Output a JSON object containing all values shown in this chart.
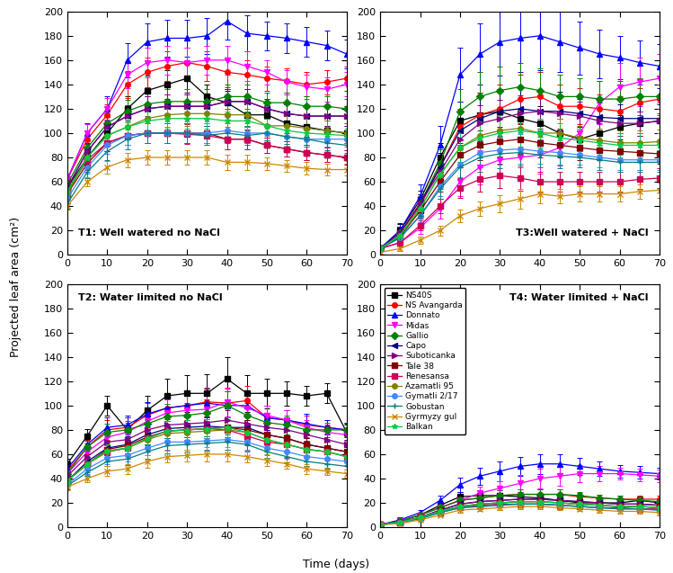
{
  "cultivars": [
    "NS40S",
    "NS Avangarda",
    "Donnato",
    "Midas",
    "Gallio",
    "Capo",
    "Suboticanka",
    "Tale 38",
    "Renesansa",
    "Azamatli 95",
    "Gymatli 2/17",
    "Gobustan",
    "Gyrmyzy gul",
    "Balkan"
  ],
  "colors": [
    "#000000",
    "#ff0000",
    "#0000ff",
    "#ff00ff",
    "#008000",
    "#000080",
    "#800080",
    "#800000",
    "#cc0055",
    "#808000",
    "#4488ff",
    "#008080",
    "#cc8800",
    "#00cc44"
  ],
  "markers": [
    "s",
    "o",
    "^",
    "v",
    "D",
    "<",
    ">",
    "s",
    "s",
    "o",
    "o",
    "+",
    "x",
    "*"
  ],
  "time": [
    0,
    5,
    10,
    15,
    20,
    25,
    30,
    35,
    40,
    45,
    50,
    55,
    60,
    65,
    70
  ],
  "T1": [
    [
      55,
      80,
      100,
      120,
      135,
      140,
      145,
      130,
      125,
      115,
      115,
      108,
      105,
      102,
      100
    ],
    [
      62,
      95,
      115,
      140,
      150,
      155,
      158,
      155,
      150,
      148,
      145,
      143,
      140,
      142,
      145
    ],
    [
      62,
      100,
      120,
      160,
      175,
      178,
      178,
      180,
      192,
      182,
      180,
      178,
      175,
      172,
      165
    ],
    [
      62,
      100,
      120,
      148,
      158,
      160,
      158,
      160,
      160,
      155,
      150,
      142,
      138,
      136,
      140
    ],
    [
      58,
      88,
      108,
      118,
      124,
      126,
      126,
      126,
      130,
      130,
      125,
      125,
      122,
      122,
      120
    ],
    [
      55,
      85,
      105,
      114,
      120,
      122,
      122,
      122,
      126,
      126,
      120,
      116,
      114,
      114,
      114
    ],
    [
      55,
      85,
      105,
      114,
      120,
      122,
      122,
      122,
      126,
      126,
      120,
      116,
      114,
      114,
      114
    ],
    [
      50,
      75,
      92,
      98,
      100,
      100,
      100,
      100,
      95,
      95,
      90,
      87,
      84,
      82,
      80
    ],
    [
      52,
      78,
      92,
      98,
      100,
      100,
      99,
      98,
      95,
      95,
      90,
      87,
      84,
      82,
      80
    ],
    [
      50,
      80,
      98,
      105,
      112,
      115,
      116,
      116,
      115,
      115,
      106,
      106,
      104,
      102,
      100
    ],
    [
      46,
      72,
      90,
      98,
      100,
      100,
      100,
      100,
      102,
      100,
      100,
      97,
      95,
      95,
      95
    ],
    [
      42,
      68,
      85,
      95,
      100,
      100,
      100,
      98,
      100,
      98,
      100,
      97,
      95,
      92,
      90
    ],
    [
      40,
      60,
      72,
      78,
      80,
      80,
      80,
      80,
      76,
      76,
      75,
      73,
      71,
      70,
      70
    ],
    [
      52,
      80,
      98,
      105,
      110,
      112,
      112,
      112,
      110,
      110,
      106,
      102,
      100,
      99,
      98
    ]
  ],
  "T1_err": [
    [
      4,
      6,
      8,
      10,
      12,
      12,
      12,
      10,
      10,
      10,
      8,
      8,
      8,
      8,
      8
    ],
    [
      5,
      7,
      9,
      11,
      12,
      12,
      12,
      12,
      12,
      12,
      10,
      10,
      10,
      10,
      10
    ],
    [
      5,
      8,
      10,
      14,
      15,
      15,
      15,
      15,
      15,
      15,
      12,
      12,
      12,
      12,
      12
    ],
    [
      5,
      7,
      9,
      11,
      12,
      12,
      12,
      12,
      12,
      12,
      10,
      10,
      10,
      10,
      10
    ],
    [
      4,
      6,
      8,
      9,
      10,
      10,
      10,
      10,
      10,
      10,
      8,
      8,
      8,
      8,
      8
    ],
    [
      4,
      6,
      8,
      9,
      10,
      10,
      10,
      10,
      10,
      10,
      8,
      8,
      8,
      8,
      8
    ],
    [
      4,
      6,
      8,
      9,
      10,
      10,
      10,
      10,
      10,
      10,
      8,
      8,
      8,
      8,
      8
    ],
    [
      4,
      5,
      7,
      8,
      8,
      8,
      8,
      8,
      8,
      8,
      6,
      6,
      6,
      6,
      6
    ],
    [
      4,
      5,
      7,
      8,
      8,
      8,
      8,
      8,
      8,
      8,
      6,
      6,
      6,
      6,
      6
    ],
    [
      4,
      6,
      8,
      9,
      10,
      10,
      10,
      10,
      10,
      10,
      8,
      8,
      8,
      8,
      8
    ],
    [
      4,
      5,
      7,
      8,
      8,
      8,
      8,
      8,
      8,
      8,
      6,
      6,
      6,
      6,
      6
    ],
    [
      4,
      5,
      7,
      8,
      8,
      8,
      8,
      8,
      8,
      8,
      6,
      6,
      6,
      6,
      6
    ],
    [
      3,
      4,
      5,
      6,
      6,
      6,
      6,
      6,
      6,
      6,
      5,
      5,
      5,
      5,
      5
    ],
    [
      4,
      5,
      7,
      8,
      8,
      8,
      8,
      8,
      8,
      8,
      6,
      6,
      6,
      6,
      6
    ]
  ],
  "T2": [
    [
      52,
      75,
      100,
      80,
      96,
      108,
      110,
      110,
      122,
      110,
      110,
      110,
      108,
      110,
      78
    ],
    [
      46,
      66,
      80,
      82,
      92,
      98,
      100,
      103,
      102,
      104,
      90,
      88,
      84,
      82,
      80
    ],
    [
      48,
      68,
      82,
      84,
      93,
      98,
      100,
      102,
      100,
      100,
      90,
      88,
      85,
      82,
      80
    ],
    [
      44,
      62,
      74,
      78,
      87,
      94,
      96,
      97,
      103,
      98,
      92,
      88,
      82,
      78,
      76
    ],
    [
      44,
      66,
      78,
      80,
      85,
      91,
      92,
      94,
      100,
      92,
      86,
      84,
      80,
      80,
      80
    ],
    [
      38,
      54,
      65,
      68,
      76,
      81,
      82,
      83,
      82,
      82,
      76,
      73,
      68,
      65,
      62
    ],
    [
      42,
      58,
      70,
      72,
      80,
      84,
      85,
      86,
      88,
      85,
      82,
      80,
      76,
      72,
      68
    ],
    [
      38,
      52,
      64,
      67,
      74,
      79,
      80,
      81,
      82,
      80,
      76,
      73,
      68,
      65,
      62
    ],
    [
      38,
      52,
      62,
      65,
      73,
      79,
      80,
      81,
      80,
      75,
      70,
      68,
      64,
      62,
      58
    ],
    [
      38,
      52,
      62,
      65,
      72,
      77,
      78,
      79,
      80,
      78,
      72,
      68,
      64,
      62,
      58
    ],
    [
      35,
      48,
      57,
      59,
      65,
      70,
      70,
      71,
      72,
      70,
      65,
      62,
      58,
      56,
      54
    ],
    [
      34,
      45,
      54,
      56,
      62,
      67,
      68,
      69,
      70,
      68,
      62,
      58,
      54,
      52,
      50
    ],
    [
      33,
      40,
      46,
      48,
      54,
      58,
      59,
      60,
      60,
      58,
      55,
      52,
      48,
      46,
      44
    ],
    [
      38,
      52,
      63,
      65,
      73,
      79,
      80,
      81,
      82,
      78,
      72,
      68,
      64,
      62,
      58
    ]
  ],
  "T2_err": [
    [
      4,
      6,
      8,
      10,
      12,
      14,
      15,
      16,
      18,
      15,
      12,
      10,
      8,
      8,
      6
    ],
    [
      4,
      6,
      8,
      8,
      10,
      11,
      12,
      12,
      12,
      12,
      10,
      8,
      8,
      6,
      6
    ],
    [
      4,
      6,
      8,
      8,
      10,
      11,
      12,
      12,
      12,
      12,
      10,
      8,
      8,
      6,
      6
    ],
    [
      3,
      5,
      7,
      8,
      10,
      11,
      12,
      12,
      12,
      10,
      8,
      8,
      6,
      6,
      5
    ],
    [
      3,
      5,
      7,
      7,
      8,
      10,
      10,
      11,
      12,
      10,
      8,
      8,
      6,
      6,
      5
    ],
    [
      3,
      4,
      6,
      7,
      8,
      8,
      8,
      8,
      8,
      8,
      6,
      6,
      5,
      5,
      4
    ],
    [
      3,
      4,
      6,
      7,
      8,
      8,
      8,
      8,
      8,
      8,
      6,
      6,
      5,
      5,
      4
    ],
    [
      3,
      4,
      5,
      6,
      7,
      8,
      8,
      8,
      8,
      8,
      6,
      6,
      5,
      5,
      4
    ],
    [
      3,
      4,
      5,
      6,
      7,
      8,
      8,
      8,
      8,
      8,
      6,
      6,
      5,
      5,
      4
    ],
    [
      3,
      4,
      5,
      6,
      6,
      7,
      8,
      8,
      8,
      8,
      6,
      6,
      5,
      5,
      4
    ],
    [
      3,
      4,
      5,
      5,
      6,
      6,
      6,
      7,
      8,
      6,
      6,
      5,
      4,
      4,
      3
    ],
    [
      3,
      3,
      4,
      5,
      6,
      6,
      6,
      6,
      6,
      6,
      5,
      5,
      4,
      4,
      3
    ],
    [
      3,
      3,
      4,
      4,
      5,
      5,
      5,
      6,
      6,
      5,
      5,
      4,
      4,
      3,
      3
    ],
    [
      3,
      4,
      5,
      6,
      7,
      8,
      8,
      8,
      8,
      8,
      6,
      6,
      5,
      5,
      4
    ]
  ],
  "T3": [
    [
      5,
      20,
      45,
      80,
      110,
      115,
      118,
      112,
      108,
      100,
      95,
      100,
      105,
      108,
      110
    ],
    [
      5,
      18,
      40,
      72,
      105,
      115,
      120,
      128,
      130,
      122,
      122,
      120,
      118,
      125,
      128
    ],
    [
      5,
      20,
      48,
      90,
      148,
      165,
      175,
      178,
      180,
      175,
      170,
      165,
      162,
      158,
      155
    ],
    [
      5,
      10,
      22,
      38,
      60,
      72,
      78,
      80,
      82,
      88,
      100,
      125,
      138,
      142,
      145
    ],
    [
      5,
      18,
      42,
      75,
      118,
      130,
      135,
      138,
      135,
      130,
      130,
      128,
      128,
      130,
      130
    ],
    [
      5,
      18,
      42,
      72,
      102,
      112,
      118,
      120,
      118,
      118,
      116,
      113,
      112,
      112,
      112
    ],
    [
      5,
      18,
      42,
      68,
      95,
      108,
      112,
      116,
      118,
      116,
      114,
      110,
      108,
      108,
      110
    ],
    [
      5,
      15,
      36,
      60,
      82,
      90,
      93,
      95,
      92,
      90,
      88,
      86,
      85,
      84,
      83
    ],
    [
      5,
      10,
      24,
      40,
      55,
      62,
      65,
      63,
      60,
      60,
      60,
      60,
      60,
      62,
      63
    ],
    [
      5,
      16,
      38,
      66,
      88,
      98,
      102,
      104,
      100,
      100,
      96,
      94,
      92,
      92,
      93
    ],
    [
      5,
      14,
      32,
      56,
      74,
      84,
      86,
      87,
      85,
      84,
      82,
      80,
      78,
      78,
      78
    ],
    [
      5,
      14,
      32,
      54,
      72,
      80,
      83,
      84,
      82,
      81,
      80,
      78,
      76,
      76,
      76
    ],
    [
      2,
      5,
      12,
      20,
      32,
      38,
      42,
      46,
      50,
      48,
      50,
      50,
      50,
      52,
      53
    ],
    [
      5,
      16,
      38,
      66,
      88,
      96,
      100,
      102,
      100,
      96,
      94,
      92,
      90,
      90,
      90
    ]
  ],
  "T3_err": [
    [
      2,
      5,
      8,
      12,
      16,
      18,
      18,
      16,
      14,
      12,
      10,
      10,
      10,
      10,
      10
    ],
    [
      2,
      5,
      8,
      12,
      15,
      18,
      20,
      20,
      20,
      18,
      15,
      12,
      12,
      12,
      12
    ],
    [
      2,
      6,
      10,
      16,
      22,
      25,
      28,
      28,
      28,
      25,
      22,
      20,
      18,
      18,
      18
    ],
    [
      1,
      3,
      5,
      8,
      12,
      14,
      15,
      15,
      15,
      15,
      15,
      18,
      20,
      20,
      20
    ],
    [
      2,
      5,
      8,
      12,
      18,
      20,
      20,
      20,
      18,
      18,
      15,
      15,
      15,
      15,
      15
    ],
    [
      2,
      5,
      8,
      12,
      15,
      18,
      18,
      18,
      16,
      16,
      12,
      12,
      12,
      12,
      12
    ],
    [
      2,
      5,
      8,
      10,
      12,
      15,
      15,
      15,
      14,
      14,
      12,
      10,
      10,
      10,
      10
    ],
    [
      2,
      4,
      6,
      8,
      10,
      12,
      12,
      12,
      12,
      10,
      10,
      8,
      8,
      8,
      8
    ],
    [
      1,
      3,
      4,
      6,
      8,
      10,
      10,
      10,
      8,
      8,
      8,
      8,
      8,
      8,
      8
    ],
    [
      2,
      4,
      6,
      10,
      12,
      14,
      15,
      15,
      12,
      12,
      10,
      10,
      10,
      10,
      10
    ],
    [
      2,
      4,
      6,
      8,
      10,
      12,
      12,
      12,
      10,
      10,
      8,
      8,
      8,
      8,
      8
    ],
    [
      2,
      4,
      6,
      8,
      10,
      12,
      12,
      12,
      10,
      10,
      8,
      8,
      8,
      8,
      8
    ],
    [
      1,
      2,
      3,
      4,
      5,
      6,
      7,
      8,
      8,
      6,
      6,
      6,
      6,
      6,
      6
    ],
    [
      2,
      4,
      6,
      10,
      12,
      14,
      15,
      15,
      12,
      12,
      10,
      10,
      10,
      10,
      10
    ]
  ],
  "T4": [
    [
      2,
      5,
      10,
      18,
      25,
      26,
      26,
      25,
      24,
      22,
      20,
      20,
      20,
      22,
      20
    ],
    [
      2,
      5,
      10,
      16,
      22,
      24,
      26,
      27,
      27,
      27,
      25,
      24,
      23,
      23,
      23
    ],
    [
      2,
      6,
      12,
      22,
      35,
      42,
      46,
      50,
      52,
      52,
      50,
      48,
      46,
      45,
      44
    ],
    [
      2,
      5,
      10,
      16,
      22,
      28,
      32,
      36,
      40,
      42,
      44,
      44,
      44,
      43,
      42
    ],
    [
      2,
      5,
      10,
      16,
      22,
      24,
      26,
      27,
      27,
      27,
      26,
      24,
      23,
      22,
      21
    ],
    [
      2,
      4,
      8,
      14,
      19,
      21,
      22,
      23,
      23,
      22,
      21,
      20,
      19,
      19,
      18
    ],
    [
      2,
      4,
      8,
      14,
      19,
      21,
      22,
      23,
      23,
      22,
      21,
      20,
      19,
      19,
      18
    ],
    [
      2,
      4,
      8,
      13,
      17,
      19,
      20,
      21,
      21,
      20,
      19,
      18,
      17,
      17,
      16
    ],
    [
      2,
      4,
      8,
      12,
      16,
      18,
      19,
      19,
      19,
      18,
      17,
      16,
      16,
      15,
      15
    ],
    [
      2,
      4,
      8,
      13,
      17,
      19,
      20,
      21,
      21,
      20,
      19,
      18,
      17,
      17,
      16
    ],
    [
      2,
      4,
      7,
      12,
      16,
      17,
      18,
      19,
      19,
      18,
      17,
      16,
      15,
      15,
      14
    ],
    [
      2,
      4,
      7,
      12,
      16,
      17,
      18,
      19,
      19,
      18,
      17,
      16,
      15,
      15,
      14
    ],
    [
      2,
      3,
      6,
      10,
      14,
      15,
      16,
      17,
      17,
      16,
      15,
      14,
      13,
      13,
      12
    ],
    [
      2,
      4,
      8,
      13,
      17,
      19,
      20,
      21,
      21,
      20,
      19,
      18,
      17,
      17,
      16
    ]
  ],
  "T4_err": [
    [
      1,
      1,
      2,
      3,
      4,
      4,
      4,
      4,
      3,
      3,
      3,
      3,
      3,
      3,
      3
    ],
    [
      1,
      1,
      2,
      3,
      3,
      3,
      4,
      4,
      4,
      4,
      3,
      3,
      3,
      3,
      3
    ],
    [
      1,
      2,
      2,
      4,
      6,
      7,
      8,
      8,
      8,
      8,
      7,
      6,
      5,
      5,
      5
    ],
    [
      1,
      1,
      2,
      3,
      4,
      5,
      6,
      7,
      8,
      8,
      7,
      6,
      5,
      5,
      5
    ],
    [
      1,
      1,
      2,
      3,
      3,
      3,
      4,
      4,
      4,
      4,
      3,
      3,
      3,
      3,
      3
    ],
    [
      1,
      1,
      2,
      2,
      3,
      3,
      3,
      3,
      3,
      3,
      3,
      2,
      2,
      2,
      2
    ],
    [
      1,
      1,
      2,
      2,
      3,
      3,
      3,
      3,
      3,
      3,
      3,
      2,
      2,
      2,
      2
    ],
    [
      1,
      1,
      1,
      2,
      2,
      3,
      3,
      3,
      3,
      3,
      2,
      2,
      2,
      2,
      2
    ],
    [
      1,
      1,
      1,
      2,
      2,
      2,
      3,
      3,
      3,
      3,
      2,
      2,
      2,
      2,
      2
    ],
    [
      1,
      1,
      1,
      2,
      2,
      3,
      3,
      3,
      3,
      3,
      2,
      2,
      2,
      2,
      2
    ],
    [
      1,
      1,
      1,
      2,
      2,
      2,
      2,
      3,
      3,
      3,
      2,
      2,
      2,
      2,
      2
    ],
    [
      1,
      1,
      1,
      2,
      2,
      2,
      2,
      3,
      3,
      3,
      2,
      2,
      2,
      2,
      2
    ],
    [
      1,
      1,
      1,
      1,
      2,
      2,
      2,
      2,
      2,
      2,
      2,
      2,
      2,
      2,
      2
    ],
    [
      1,
      1,
      1,
      2,
      2,
      3,
      3,
      3,
      3,
      3,
      2,
      2,
      2,
      2,
      2
    ]
  ],
  "subplot_labels": [
    "T1: Well watered no NaCl",
    "T3:Well watered + NaCl",
    "T2: Water limited no NaCl",
    "T4: Water limited + NaCl"
  ],
  "ylabel": "Projected leaf area (cm²)",
  "xlabel": "Time (days)",
  "ylim": [
    0,
    200
  ],
  "xlim": [
    0,
    70
  ],
  "xticks": [
    0,
    10,
    20,
    30,
    40,
    50,
    60,
    70
  ],
  "yticks": [
    0,
    20,
    40,
    60,
    80,
    100,
    120,
    140,
    160,
    180,
    200
  ]
}
